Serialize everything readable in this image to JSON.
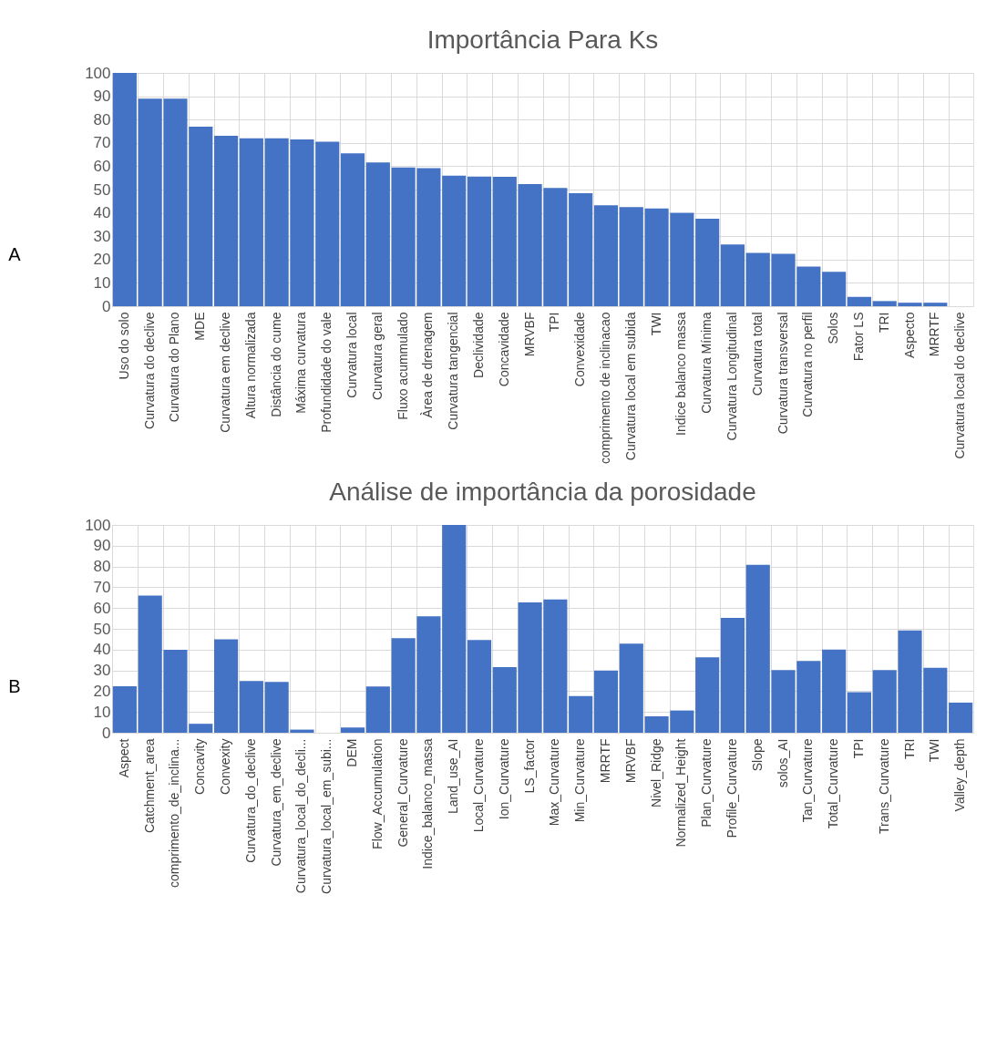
{
  "chart_data": [
    {
      "type": "bar",
      "title": "Importância Para Ks",
      "annotations": [
        "A"
      ],
      "categories": [
        "Uso do solo",
        "Curvatura do declive",
        "Curvatura do Plano",
        "MDE",
        "Curvatura em declive",
        "Altura normalizada",
        "Distância do cume",
        "Máxima curvatura",
        "Profundidade do vale",
        "Curvatura local",
        "Curvatura geral",
        "Fluxo acummulado",
        "Àrea de drenagem",
        "Curvatura tangencial",
        "Declividade",
        "Concavidade",
        "MRVBF",
        "TPI",
        "Convexidade",
        "comprimento de inclinacao",
        "Curvatura local em subida",
        "TWI",
        "Indice balanco massa",
        "Curvatura Mínima",
        "Curvatura Longitudinal",
        "Curvatura total",
        "Curvatura transversal",
        "Curvatura no perfil",
        "Solos",
        "Fator LS",
        "TRI",
        "Aspecto",
        "MRRTF",
        "Curvatura local do declive"
      ],
      "values": [
        100,
        89,
        89,
        77,
        73,
        72,
        72,
        71.5,
        70.5,
        65.5,
        61.6,
        59.5,
        59.2,
        56,
        55.6,
        55.5,
        52.3,
        50.7,
        48.4,
        43.3,
        42.5,
        41.9,
        40,
        37.5,
        26.5,
        22.9,
        22.5,
        17,
        14.7,
        4,
        2.2,
        1.5,
        1.5,
        0
      ],
      "color": "#4472c4",
      "ylim": [
        0,
        100
      ],
      "yticks": [
        0,
        10,
        20,
        30,
        40,
        50,
        60,
        70,
        80,
        90,
        100
      ],
      "grid": true
    },
    {
      "type": "bar",
      "title": "Análise de importância da porosidade",
      "annotations": [
        "B"
      ],
      "categories": [
        "Aspect",
        "Catchment_area",
        "comprimento_de_inclina...",
        "Concavity",
        "Convexity",
        "Curvatura_do_declive",
        "Curvatura_em_declive",
        "Curvatura_local_do_decli...",
        "Curvatura_local_em_subi...",
        "DEM",
        "Flow_Accumulation",
        "General_Curvature",
        "Indice_balanco_massa",
        "Land_use_AI",
        "Local_Curvature",
        "Ion_Curvature",
        "LS_factor",
        "Max_Curvature",
        "Min_Curvature",
        "MRRTF",
        "MRVBF",
        "Nivel_Ridge",
        "Normalized_Height",
        "Plan_Curvature",
        "Profile_Curvature",
        "Slope",
        "solos_AI",
        "Tan_Curvature",
        "Total_Curvature",
        "TPI",
        "Trans_Curvature",
        "TRI",
        "TWI",
        "Valley_depth"
      ],
      "values": [
        22.4,
        66,
        39.9,
        4.3,
        45,
        24.9,
        24.5,
        1.5,
        0,
        2.5,
        22.3,
        45.5,
        56,
        100,
        44.6,
        31.6,
        62.7,
        64.1,
        17.7,
        29.9,
        42.9,
        7.9,
        10.7,
        36.3,
        55.3,
        80.8,
        30.1,
        34.5,
        40,
        19.5,
        30.1,
        49.2,
        31.3,
        14.5
      ],
      "color": "#4472c4",
      "ylim": [
        0,
        100
      ],
      "yticks": [
        0,
        10,
        20,
        30,
        40,
        50,
        60,
        70,
        80,
        90,
        100
      ],
      "grid": true
    }
  ]
}
